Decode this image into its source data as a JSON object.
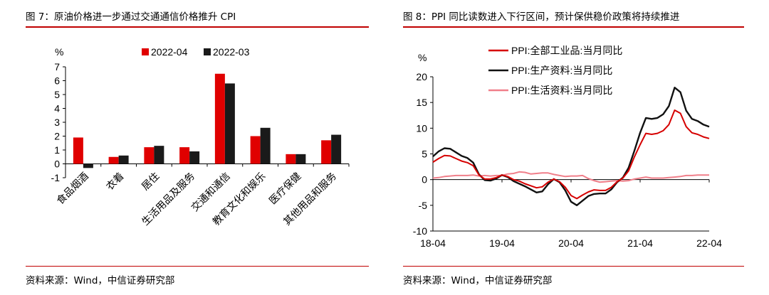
{
  "left": {
    "title": "图 7：原油价格进一步通过交通通信价格推升 CPI",
    "source": "资料来源：Wind，中信证券研究部"
  },
  "right": {
    "title": "图 8：PPI 同比读数进入下行区间，预计保供稳价政策将持续推进",
    "source": "资料来源：Wind，中信证券研究部"
  },
  "chart_data": [
    {
      "type": "bar",
      "ylabel": "%",
      "ylim": [
        -1,
        7
      ],
      "yticks": [
        -1,
        0,
        1,
        2,
        3,
        4,
        5,
        6,
        7
      ],
      "categories": [
        "食品烟酒",
        "衣着",
        "居住",
        "生活用品及服务",
        "交通和通信",
        "教育文化和娱乐",
        "医疗保健",
        "其他用品和服务"
      ],
      "series": [
        {
          "name": "2022-04",
          "color": "#e00000",
          "values": [
            1.9,
            0.5,
            1.2,
            1.2,
            6.5,
            2.0,
            0.7,
            1.7
          ]
        },
        {
          "name": "2022-03",
          "color": "#1a1a1a",
          "values": [
            -0.3,
            0.6,
            1.3,
            0.9,
            5.8,
            2.6,
            0.7,
            2.1
          ]
        }
      ],
      "legend": "top"
    },
    {
      "type": "line",
      "ylabel": "%",
      "ylim": [
        -10,
        20
      ],
      "yticks": [
        -10,
        -5,
        0,
        5,
        10,
        15,
        20
      ],
      "xticks": [
        "18-04",
        "19-04",
        "20-04",
        "21-04",
        "22-04"
      ],
      "x": [
        "2018-04",
        "2018-05",
        "2018-06",
        "2018-07",
        "2018-08",
        "2018-09",
        "2018-10",
        "2018-11",
        "2018-12",
        "2019-01",
        "2019-02",
        "2019-03",
        "2019-04",
        "2019-05",
        "2019-06",
        "2019-07",
        "2019-08",
        "2019-09",
        "2019-10",
        "2019-11",
        "2019-12",
        "2020-01",
        "2020-02",
        "2020-03",
        "2020-04",
        "2020-05",
        "2020-06",
        "2020-07",
        "2020-08",
        "2020-09",
        "2020-10",
        "2020-11",
        "2020-12",
        "2021-01",
        "2021-02",
        "2021-03",
        "2021-04",
        "2021-05",
        "2021-06",
        "2021-07",
        "2021-08",
        "2021-09",
        "2021-10",
        "2021-11",
        "2021-12",
        "2022-01",
        "2022-02",
        "2022-03",
        "2022-04"
      ],
      "series": [
        {
          "name": "PPI:全部工业品:当月同比",
          "color": "#d60000",
          "width": 2,
          "values": [
            3.4,
            4.1,
            4.7,
            4.6,
            4.1,
            3.6,
            3.3,
            2.7,
            0.9,
            0.1,
            0.1,
            0.4,
            0.9,
            0.6,
            0.0,
            -0.3,
            -0.8,
            -1.2,
            -1.6,
            -1.4,
            -0.5,
            0.1,
            -0.4,
            -1.5,
            -3.1,
            -3.7,
            -3.0,
            -2.4,
            -2.0,
            -2.1,
            -2.1,
            -1.5,
            -0.4,
            0.3,
            1.7,
            4.4,
            6.8,
            9.0,
            8.8,
            9.0,
            9.5,
            10.7,
            13.5,
            12.9,
            10.3,
            9.1,
            8.8,
            8.3,
            8.0
          ]
        },
        {
          "name": "PPI:生产资料:当月同比",
          "color": "#111111",
          "width": 2.4,
          "values": [
            4.5,
            5.5,
            6.1,
            6.0,
            5.3,
            4.6,
            4.2,
            3.3,
            1.0,
            -0.1,
            -0.2,
            0.2,
            0.9,
            0.5,
            -0.3,
            -0.8,
            -1.3,
            -1.9,
            -2.5,
            -2.3,
            -0.9,
            0.1,
            -0.5,
            -2.1,
            -4.3,
            -5.0,
            -4.1,
            -3.2,
            -2.8,
            -2.7,
            -2.7,
            -1.9,
            -0.5,
            0.4,
            2.3,
            5.6,
            9.1,
            12.0,
            11.8,
            12.0,
            12.7,
            14.3,
            17.9,
            17.0,
            13.4,
            11.8,
            11.4,
            10.7,
            10.3
          ]
        },
        {
          "name": "PPI:生活资料:当月同比",
          "color": "#f07f8a",
          "width": 2,
          "values": [
            0.3,
            0.4,
            0.6,
            0.7,
            0.8,
            0.8,
            0.8,
            0.9,
            0.7,
            0.8,
            0.7,
            0.8,
            0.8,
            1.1,
            1.2,
            1.5,
            1.4,
            1.1,
            1.2,
            1.3,
            1.3,
            1.0,
            0.8,
            0.6,
            0.7,
            0.7,
            0.8,
            0.2,
            -0.2,
            -0.5,
            -0.4,
            -0.3,
            -0.2,
            -0.3,
            -0.2,
            0.1,
            0.3,
            0.5,
            0.3,
            0.3,
            0.3,
            0.4,
            0.5,
            0.6,
            0.8,
            0.8,
            0.9,
            0.9,
            0.9
          ]
        }
      ],
      "legend": "top"
    }
  ]
}
